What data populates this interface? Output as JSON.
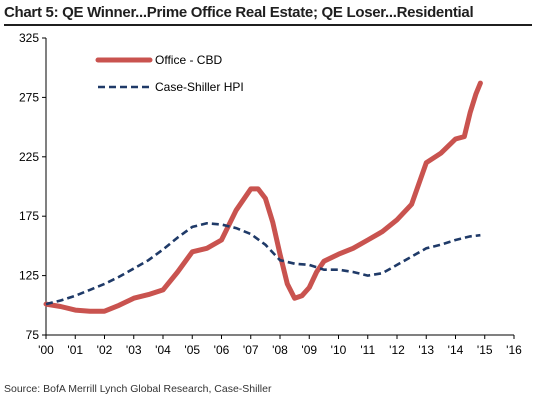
{
  "title": "Chart 5: QE Winner...Prime Office Real Estate; QE Loser...Residential",
  "source": "Source: BofA Merrill Lynch Global Research, Case-Shiller",
  "colors": {
    "office": "#c9534f",
    "hpi": "#1f3a68",
    "axis": "#000000"
  },
  "chart_data": {
    "type": "line",
    "title": "Chart 5: QE Winner...Prime Office Real Estate; QE Loser...Residential",
    "xlabel": "",
    "ylabel": "",
    "xlim": [
      2000,
      2016
    ],
    "ylim": [
      75,
      325
    ],
    "grid": false,
    "legend": "top-left",
    "x_ticks": [
      "'00",
      "'01",
      "'02",
      "'03",
      "'04",
      "'05",
      "'06",
      "'07",
      "'08",
      "'09",
      "'10",
      "'11",
      "'12",
      "'13",
      "'14",
      "'15",
      "'16"
    ],
    "y_ticks": [
      "75",
      "125",
      "175",
      "225",
      "275",
      "325"
    ],
    "series": [
      {
        "name": "Office - CBD",
        "style": "solid-thick",
        "color": "#c9534f",
        "x": [
          2000,
          2000.5,
          2001,
          2001.5,
          2002,
          2002.5,
          2003,
          2003.5,
          2004,
          2004.5,
          2005,
          2005.5,
          2006,
          2006.5,
          2007,
          2007.25,
          2007.5,
          2007.75,
          2008,
          2008.25,
          2008.5,
          2008.75,
          2009,
          2009.25,
          2009.5,
          2010,
          2010.5,
          2011,
          2011.5,
          2012,
          2012.5,
          2013,
          2013.5,
          2014,
          2014.3,
          2014.5,
          2014.7,
          2014.85
        ],
        "y": [
          101,
          99,
          96,
          95,
          95,
          100,
          106,
          109,
          113,
          128,
          145,
          148,
          155,
          180,
          198,
          198,
          190,
          170,
          143,
          118,
          106,
          108,
          115,
          128,
          137,
          143,
          148,
          155,
          162,
          172,
          185,
          220,
          228,
          240,
          242,
          262,
          278,
          287
        ]
      },
      {
        "name": "Case-Shiller HPI",
        "style": "dashed",
        "color": "#1f3a68",
        "x": [
          2000,
          2000.5,
          2001,
          2001.5,
          2002,
          2002.5,
          2003,
          2003.5,
          2004,
          2004.5,
          2005,
          2005.5,
          2006,
          2006.5,
          2007,
          2007.5,
          2008,
          2008.5,
          2009,
          2009.5,
          2010,
          2010.5,
          2011,
          2011.5,
          2012,
          2012.5,
          2013,
          2013.5,
          2014,
          2014.5,
          2014.85
        ],
        "y": [
          101,
          104,
          108,
          113,
          118,
          124,
          131,
          138,
          147,
          157,
          166,
          169,
          168,
          165,
          160,
          151,
          138,
          135,
          134,
          130,
          130,
          128,
          125,
          127,
          134,
          141,
          148,
          151,
          155,
          158,
          159
        ]
      }
    ]
  }
}
